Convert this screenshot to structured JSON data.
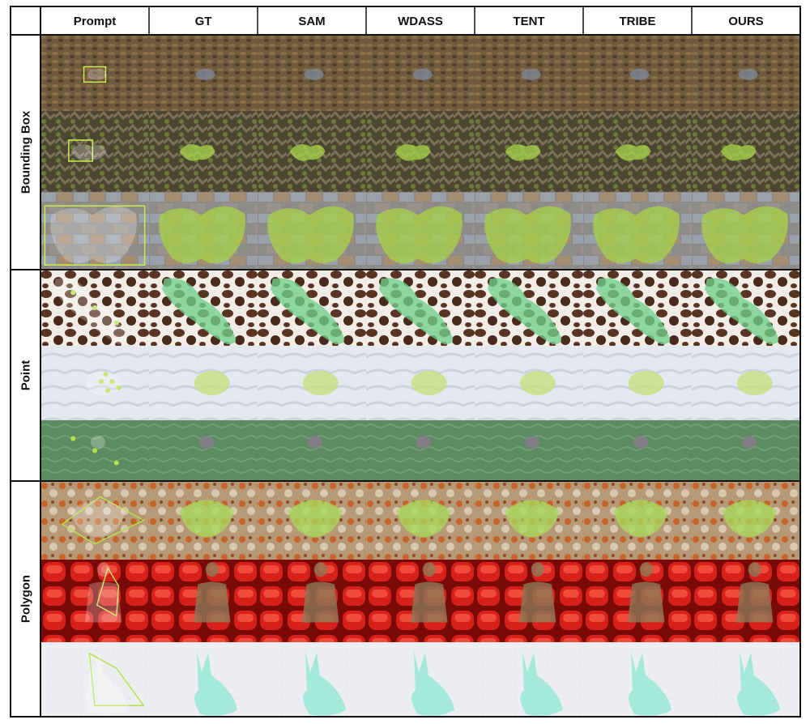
{
  "figure": {
    "columns": [
      "Prompt",
      "GT",
      "SAM",
      "WDASS",
      "TENT",
      "TRIBE",
      "OURS"
    ],
    "groups": [
      {
        "label": "Bounding Box",
        "rows": [
          {
            "name": "leaf-litter-moth",
            "bg": "#6f5a3d",
            "mask": "#7d8797",
            "shape": "blob-small"
          },
          {
            "name": "lichen-bark",
            "bg": "#57513a",
            "mask": "#a6d14a",
            "shape": "blob-lichen"
          },
          {
            "name": "moth-on-stone",
            "bg": "#8b8a88",
            "mask": "#a6d14a",
            "shape": "moth"
          }
        ]
      },
      {
        "label": "Point",
        "rows": [
          {
            "name": "cow-print-animal",
            "bg": "#5a3422",
            "mask": "#6fd08a",
            "shape": "diagonal"
          },
          {
            "name": "seal-pup-on-snow",
            "bg": "#dfe5ef",
            "mask": "#c5e07a",
            "shape": "seal"
          },
          {
            "name": "fish-in-water",
            "bg": "#5a8a5c",
            "mask": "#8a7a90",
            "shape": "fish"
          }
        ]
      },
      {
        "label": "Polygon",
        "rows": [
          {
            "name": "crab-on-coral",
            "bg": "#a98c6a",
            "mask": "#a9d85a",
            "shape": "crab"
          },
          {
            "name": "person-in-red-seats",
            "bg": "#b81410",
            "mask": "#8a7b5a",
            "shape": "person"
          },
          {
            "name": "white-hare-on-snow",
            "bg": "#eceef0",
            "mask": "#8fe8d2",
            "shape": "hare"
          }
        ]
      }
    ]
  }
}
